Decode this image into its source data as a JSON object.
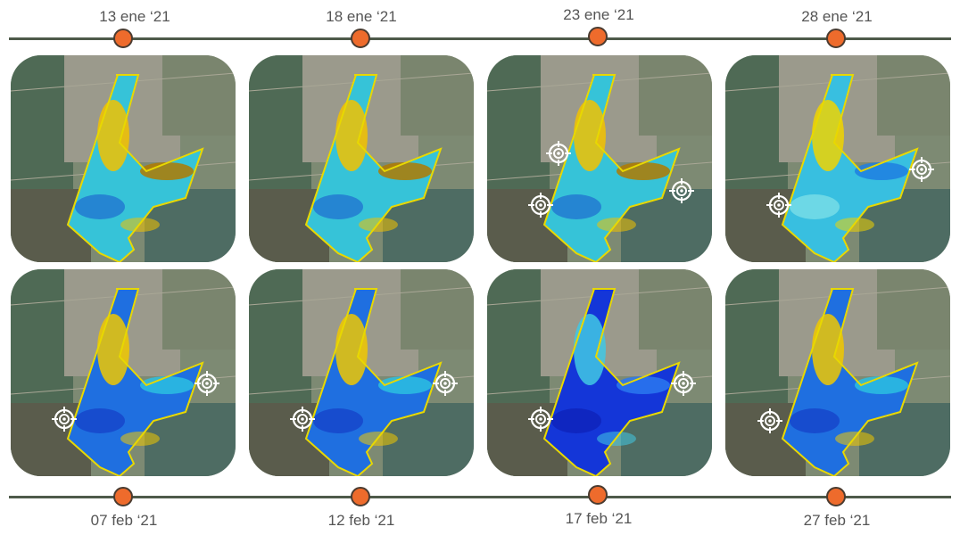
{
  "timeline_top": {
    "dates": [
      "13 ene ‘21",
      "18 ene ‘21",
      "23 ene ‘21",
      "28 ene ‘21"
    ]
  },
  "timeline_bottom": {
    "dates": [
      "07 feb ‘21",
      "12 feb ‘21",
      "17 feb ‘21",
      "27 feb ‘21"
    ]
  },
  "colors": {
    "timeline_line": "#4e5a4a",
    "marker_fill": "#ee6b2c",
    "high_index": "#1a3fd8",
    "mid_index": "#2ec5e0",
    "low_index": "#f0d400",
    "very_low_index": "#a06a00"
  },
  "tiles": [
    {
      "name": "map-13-ene",
      "palette": "yellow-cyan",
      "targets": 0
    },
    {
      "name": "map-18-ene",
      "palette": "yellow-cyan",
      "targets": 0
    },
    {
      "name": "map-23-ene",
      "palette": "yellow-cyan",
      "targets": 3
    },
    {
      "name": "map-28-ene",
      "palette": "cyan",
      "targets": 2
    },
    {
      "name": "map-07-feb",
      "palette": "blue",
      "targets": 2
    },
    {
      "name": "map-12-feb",
      "palette": "blue",
      "targets": 2
    },
    {
      "name": "map-17-feb",
      "palette": "deep-blue",
      "targets": 2
    },
    {
      "name": "map-27-feb",
      "palette": "blue",
      "targets": 1
    }
  ]
}
